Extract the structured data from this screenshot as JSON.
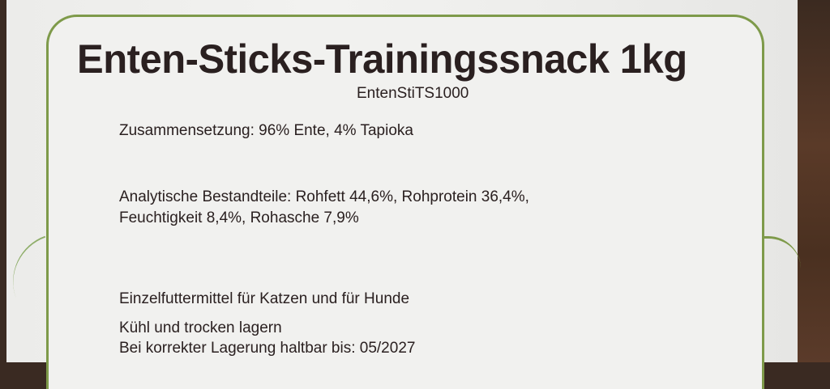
{
  "label": {
    "title": "Enten-Sticks-Trainingssnack 1kg",
    "code": "EntenStiTS1000",
    "composition": "Zusammensetzung: 96% Ente, 4% Tapioka",
    "analytics_line1": "Analytische Bestandteile: Rohfett 44,6%, Rohprotein 36,4%,",
    "analytics_line2": "Feuchtigkeit 8,4%, Rohasche 7,9%",
    "feed_type": "Einzelfuttermittel für Katzen und für Hunde",
    "storage": "Kühl und trocken lagern",
    "best_before": "Bei korrekter Lagerung haltbar bis: 05/2027"
  },
  "colors": {
    "border": "#7e9a4a",
    "text": "#2a2020"
  }
}
